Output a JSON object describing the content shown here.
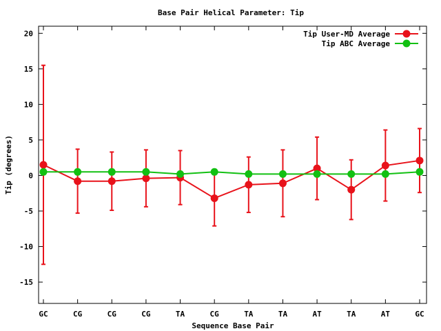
{
  "chart_data": {
    "type": "line",
    "title": "Base Pair Helical Parameter: Tip",
    "xlabel": "Sequence Base Pair",
    "ylabel": "Tip (degrees)",
    "categories": [
      "GC",
      "CG",
      "CG",
      "CG",
      "TA",
      "CG",
      "TA",
      "TA",
      "AT",
      "TA",
      "AT",
      "GC"
    ],
    "ylim": [
      -18,
      21
    ],
    "yticks": [
      -15,
      -10,
      -5,
      0,
      5,
      10,
      15,
      20
    ],
    "legend_position": "top-right",
    "grid": false,
    "series": [
      {
        "name": "Tip User-MD Average",
        "color": "#e8121a",
        "values": [
          1.5,
          -0.8,
          -0.8,
          -0.4,
          -0.3,
          -3.2,
          -1.3,
          -1.1,
          1.0,
          -2.0,
          1.4,
          2.1
        ],
        "error": [
          14.0,
          4.5,
          4.1,
          4.0,
          3.8,
          3.9,
          3.9,
          4.7,
          4.4,
          4.2,
          5.0,
          4.5
        ]
      },
      {
        "name": "Tip ABC Average",
        "color": "#12c012",
        "values": [
          0.5,
          0.5,
          0.5,
          0.5,
          0.2,
          0.5,
          0.2,
          0.2,
          0.2,
          0.2,
          0.2,
          0.5
        ]
      }
    ]
  }
}
